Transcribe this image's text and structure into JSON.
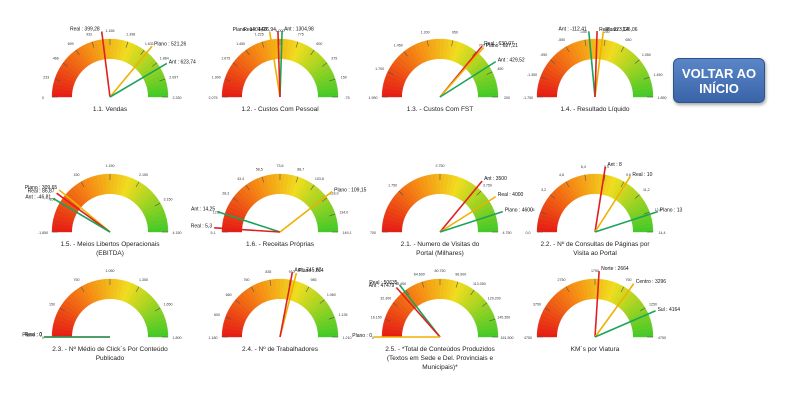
{
  "button": {
    "line1": "VOLTAR AO",
    "line2": "INÍCIO"
  },
  "colors": {
    "actual": "#e02020",
    "plan": "#f0b000",
    "prev": "#1aa35a",
    "button": "#4472c4"
  },
  "gauges": [
    {
      "title": [
        "1.1. Vendas"
      ],
      "ticks": [
        "0",
        "233",
        "466",
        "699",
        "932",
        "1.165",
        "1.398",
        "1.631",
        "1.864",
        "2.097",
        "2.330"
      ],
      "needles": [
        {
          "kind": "actual",
          "label": "Real : 399,28",
          "value": 0.46
        },
        {
          "kind": "plan",
          "label": "Plano : 521,26",
          "value": 0.72
        },
        {
          "kind": "prev",
          "label": "Ant : 623,74",
          "value": 0.83
        }
      ]
    },
    {
      "title": [
        "1.2. - Custos  Com Pessoal"
      ],
      "ticks": [
        "2.075",
        "1.900",
        "1.675",
        "1.450",
        "1.225",
        "1.000",
        "775",
        "600",
        "375",
        "150",
        "-75"
      ],
      "needles": [
        {
          "kind": "plan",
          "label": "Plano : 1404,97",
          "value": 0.45
        },
        {
          "kind": "prev",
          "label": "Ant : 1304,98",
          "value": 0.51
        },
        {
          "kind": "actual",
          "label": "Real : 1426,94",
          "value": 0.49
        }
      ]
    },
    {
      "title": [
        "1.3. - Custos  Com  FST"
      ],
      "ticks": [
        "1.950",
        "1.700",
        "1.450",
        "1.200",
        "950",
        "700",
        "450",
        "200"
      ],
      "needles": [
        {
          "kind": "actual",
          "label": "Real : 630,07",
          "value": 0.72
        },
        {
          "kind": "plan",
          "label": "Plano : 627,21",
          "value": 0.73
        },
        {
          "kind": "prev",
          "label": "Ant : 429,52",
          "value": 0.82
        }
      ]
    },
    {
      "title": [
        "1.4. -   Resultado  Líquido"
      ],
      "ticks": [
        "-1.750",
        "-1.350",
        "-950",
        "-550",
        "-150",
        "250",
        "650",
        "1.050",
        "1.450",
        "1.850"
      ],
      "needles": [
        {
          "kind": "prev",
          "label": "Ant : -112,41",
          "value": 0.47
        },
        {
          "kind": "plan",
          "label": "Plano : 126,06",
          "value": 0.54
        },
        {
          "kind": "actual",
          "label": "Real : 223,14",
          "value": 0.51
        }
      ]
    },
    {
      "title": [
        "1.5. - Meios Libertos  Operacionais",
        "(EBITDA)"
      ],
      "ticks": [
        "-1.850",
        "-850",
        "150",
        "1.150",
        "2.150",
        "3.150",
        "4.150"
      ],
      "needles": [
        {
          "kind": "plan",
          "label": "Plano : 309,65",
          "value": 0.22
        },
        {
          "kind": "actual",
          "label": "Real : 86,87",
          "value": 0.2
        },
        {
          "kind": "prev",
          "label": "Ant : -46,81",
          "value": 0.17
        }
      ]
    },
    {
      "title": [
        "1.6. - Receitas Próprias"
      ],
      "ticks": [
        "5,1",
        "12,2",
        "28,3",
        "43,4",
        "58,5",
        "73,6",
        "88,7",
        "103,8",
        "118,9",
        "134,0",
        "149,1"
      ],
      "needles": [
        {
          "kind": "prev",
          "label": "Ant : 14,25",
          "value": 0.1
        },
        {
          "kind": "actual",
          "label": "Real : 5,3",
          "value": 0.02
        },
        {
          "kind": "plan",
          "label": "Plano : 109,15",
          "value": 0.79
        }
      ]
    },
    {
      "title": [
        "2.1. - Numero de Visitas do",
        "Portal  (Milhares)"
      ],
      "ticks": [
        "700",
        "1.750",
        "2.750",
        "3.750",
        "4.750"
      ],
      "needles": [
        {
          "kind": "actual",
          "label": "Ant : 3500",
          "value": 0.72
        },
        {
          "kind": "plan",
          "label": "Real : 4000",
          "value": 0.82
        },
        {
          "kind": "prev",
          "label": "Plano : 4600",
          "value": 0.9
        }
      ]
    },
    {
      "title": [
        "2.2. -  Nº de Consultas  de Páginas por",
        "Visita  ao Portal"
      ],
      "ticks": [
        "0,0",
        "1,6",
        "3,2",
        "4,8",
        "6,4",
        "8,0",
        "9,6",
        "11,2",
        "12,8",
        "14,4"
      ],
      "needles": [
        {
          "kind": "actual",
          "label": "Ant : 8",
          "value": 0.55
        },
        {
          "kind": "plan",
          "label": "Real : 10",
          "value": 0.68
        },
        {
          "kind": "prev",
          "label": "Plano : 13",
          "value": 0.9
        }
      ]
    },
    {
      "title": [
        "2.3. - Nº Médio de Click´s  Por  Conteúdo",
        "Publicado"
      ],
      "ticks": [
        "0",
        "150",
        "750",
        "1.050",
        "1.350",
        "1.650",
        "1.800"
      ],
      "needles": [
        {
          "kind": "actual",
          "label": "Real : 0",
          "value": 0.0
        },
        {
          "kind": "prev",
          "label": "Plano : 0",
          "value": 0.0
        }
      ]
    },
    {
      "title": [
        "2.4. - Nº de Trabalhadores"
      ],
      "ticks": [
        "1.180",
        "600",
        "660",
        "760",
        "835",
        "910",
        "985",
        "1.060",
        "1.135",
        "1.210"
      ],
      "needles": [
        {
          "kind": "plan",
          "label": "Plano : 764",
          "value": 0.58
        },
        {
          "kind": "actual",
          "label": "Ant : 745,67",
          "value": 0.56
        }
      ]
    },
    {
      "title": [
        "2.5. - *Total de Conteúdos   Produzidos",
        "(Textos em Sede e Del. Provinciais   e",
        "Municipais)*"
      ],
      "ticks": [
        "0",
        "16.150",
        "32.300",
        "48.450",
        "64.600",
        "80.750",
        "96.900",
        "113.050",
        "129.200",
        "145.350",
        "161.500"
      ],
      "needles": [
        {
          "kind": "prev",
          "label": "Real : 50635",
          "value": 0.29
        },
        {
          "kind": "actual",
          "label": "Ant : 47479",
          "value": 0.27
        },
        {
          "kind": "plan",
          "label": "Plano : 0",
          "value": 0.0
        }
      ]
    },
    {
      "title": [
        "KM´s por Viatura"
      ],
      "ticks": [
        "4750",
        "3750",
        "2750",
        "1750",
        "750",
        "1250",
        "4750"
      ],
      "needles": [
        {
          "kind": "actual",
          "label": "Norte : 2664",
          "value": 0.52
        },
        {
          "kind": "plan",
          "label": "Centro : 3296",
          "value": 0.7
        },
        {
          "kind": "prev",
          "label": "Sul : 4164",
          "value": 0.87
        }
      ]
    }
  ]
}
